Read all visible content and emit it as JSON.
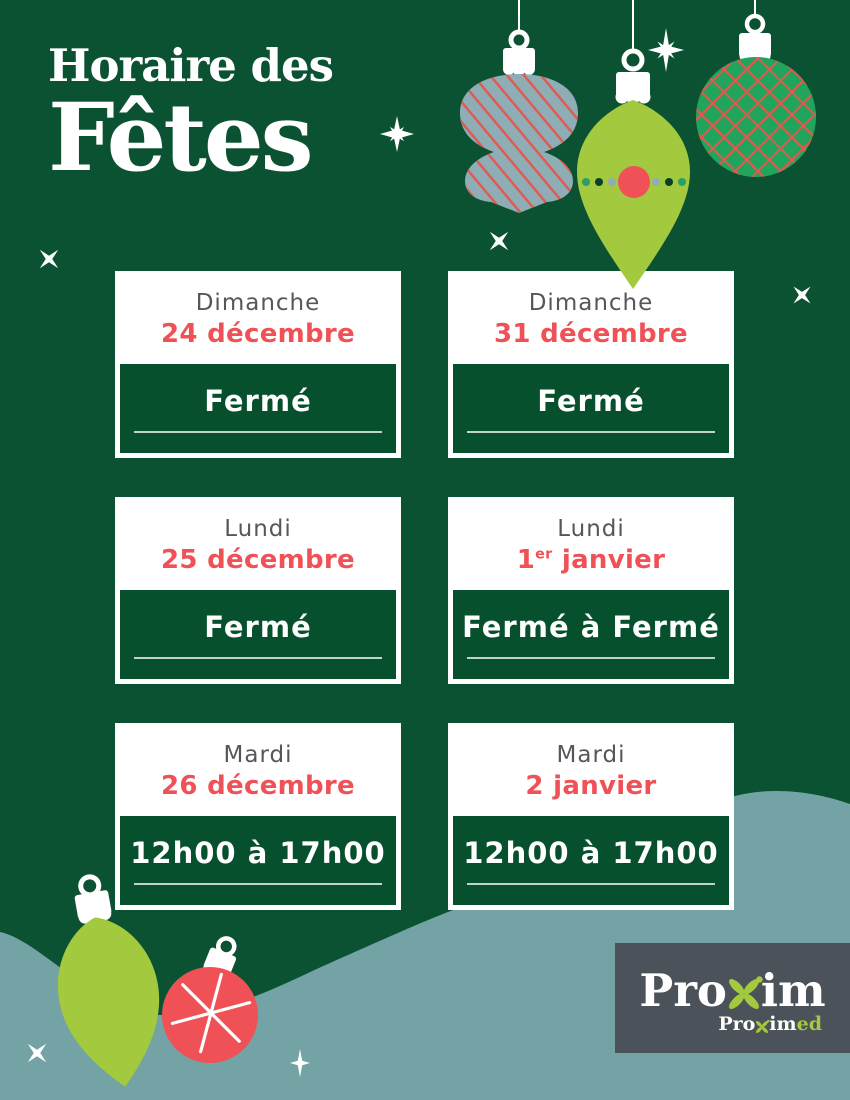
{
  "poster": {
    "title_line1": "Horaire des",
    "title_line2": "Fêtes"
  },
  "cards": [
    {
      "day": "Dimanche",
      "date": "24 décembre",
      "hours": "Fermé"
    },
    {
      "day": "Dimanche",
      "date": "31 décembre",
      "hours": "Fermé"
    },
    {
      "day": "Lundi",
      "date": "25 décembre",
      "hours": "Fermé"
    },
    {
      "day": "Lundi",
      "date_num": "1",
      "date_sup": "er",
      "date_rest": " janvier",
      "hours": "Fermé à Fermé"
    },
    {
      "day": "Mardi",
      "date": "26 décembre",
      "hours": "12h00 à 17h00"
    },
    {
      "day": "Mardi",
      "date": "2 janvier",
      "hours": "12h00 à 17h00"
    }
  ],
  "logo": {
    "brand_pre": "Pro",
    "brand_post": "im",
    "sub_pre": "Pro",
    "sub_mid": "im",
    "sub_suffix": "ed"
  },
  "icons": {
    "striped_finial": "striped-finial-ornament-icon",
    "teardrop": "teardrop-ornament-icon",
    "plaid_bauble": "plaid-bauble-ornament-icon",
    "snowflake_ball": "snowflake-ball-ornament-icon",
    "sparkle_star": "sparkle-star-icon",
    "sparkle_x": "sparkle-x-icon",
    "flower": "proxim-flower-icon"
  },
  "colors": {
    "bg": "#0B5233",
    "panel": "#07502E",
    "red": "#EF5157",
    "lime": "#A3C93E",
    "teal": "#74A3A6",
    "ball_green": "#21A45B",
    "blue_gray": "#8FADB5",
    "stripe_red": "#E4574E",
    "slate": "#4C525A",
    "day_gray": "#55575C",
    "dot_teal": "#2AA065",
    "dot_dark": "#0A4027",
    "white": "#FFFFFF"
  }
}
